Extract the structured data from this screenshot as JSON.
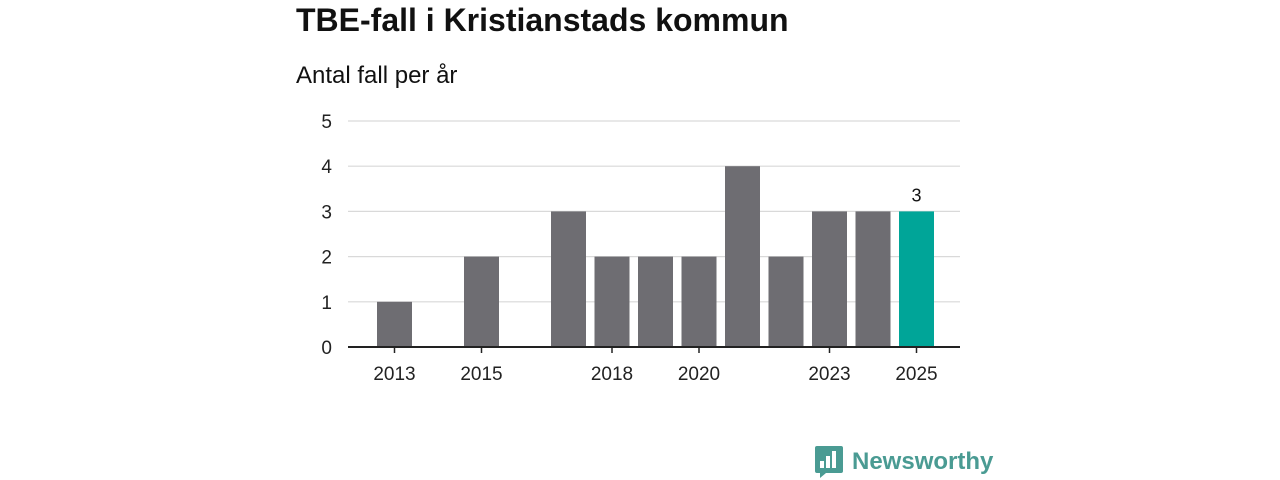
{
  "chart_data": {
    "type": "bar",
    "title": "TBE-fall i Kristianstads kommun",
    "subtitle": "Antal fall per år",
    "xlabel": "",
    "ylabel": "",
    "ylim": [
      0,
      5
    ],
    "yticks": [
      "0",
      "1",
      "2",
      "3",
      "4",
      "5"
    ],
    "grid": true,
    "categories": [
      "2013",
      "2014",
      "2015",
      "2016",
      "2017",
      "2018",
      "2019",
      "2020",
      "2021",
      "2022",
      "2023",
      "2024",
      "2025"
    ],
    "values": [
      1,
      0,
      2,
      0,
      3,
      2,
      2,
      2,
      4,
      2,
      3,
      3,
      3
    ],
    "xtick_labels": [
      "2013",
      "2015",
      "2018",
      "2020",
      "2023",
      "2025"
    ],
    "highlight_category": "2025",
    "data_labels": [
      {
        "category": "2025",
        "text": "3"
      }
    ]
  },
  "brand": {
    "name": "Newsworthy",
    "icon": "newsworthy-logo-icon"
  },
  "colors": {
    "bar": "#6e6d72",
    "highlight": "#00a598",
    "grid": "#d9d9d9",
    "axis": "#222222",
    "brand": "#4a9b93"
  }
}
